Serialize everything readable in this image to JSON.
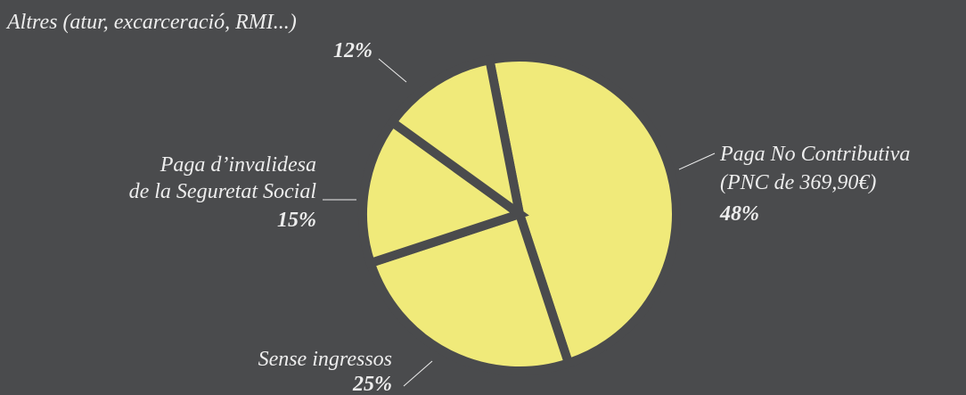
{
  "chart_data": {
    "type": "pie",
    "categories": [
      [
        "Paga No Contributiva",
        "(PNC de 369,90€)"
      ],
      [
        "Sense ingressos"
      ],
      [
        "Paga d’invalidesa",
        "de la Seguretat Social"
      ],
      [
        "Altres (atur, excarceració, RMI...)"
      ]
    ],
    "values": [
      48,
      25,
      15,
      12
    ],
    "value_labels": [
      "48%",
      "25%",
      "15%",
      "12%"
    ],
    "color": "#f0ea7a"
  }
}
